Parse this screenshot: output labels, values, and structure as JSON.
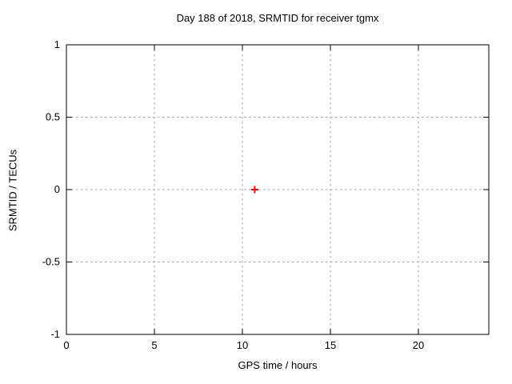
{
  "chart_data": {
    "type": "scatter",
    "title": "Day 188 of 2018, SRMTID for receiver tgmx",
    "xlabel": "GPS time / hours",
    "ylabel": "SRMTID / TECUs",
    "xlim": [
      0,
      24
    ],
    "ylim": [
      -1,
      1
    ],
    "xticks": [
      0,
      5,
      10,
      15,
      20
    ],
    "yticks": [
      1,
      0.5,
      0,
      -0.5,
      -1
    ],
    "grid": true,
    "legend_position": "none",
    "series": [
      {
        "name": "SRMTID",
        "marker": "plus",
        "color": "#ff0000",
        "points": [
          {
            "x": 10.7,
            "y": 0.0
          }
        ]
      }
    ]
  },
  "colors": {
    "background": "#ffffff",
    "border": "#000000",
    "grid": "#a0a0a0",
    "text": "#000000",
    "point": "#ff0000"
  }
}
